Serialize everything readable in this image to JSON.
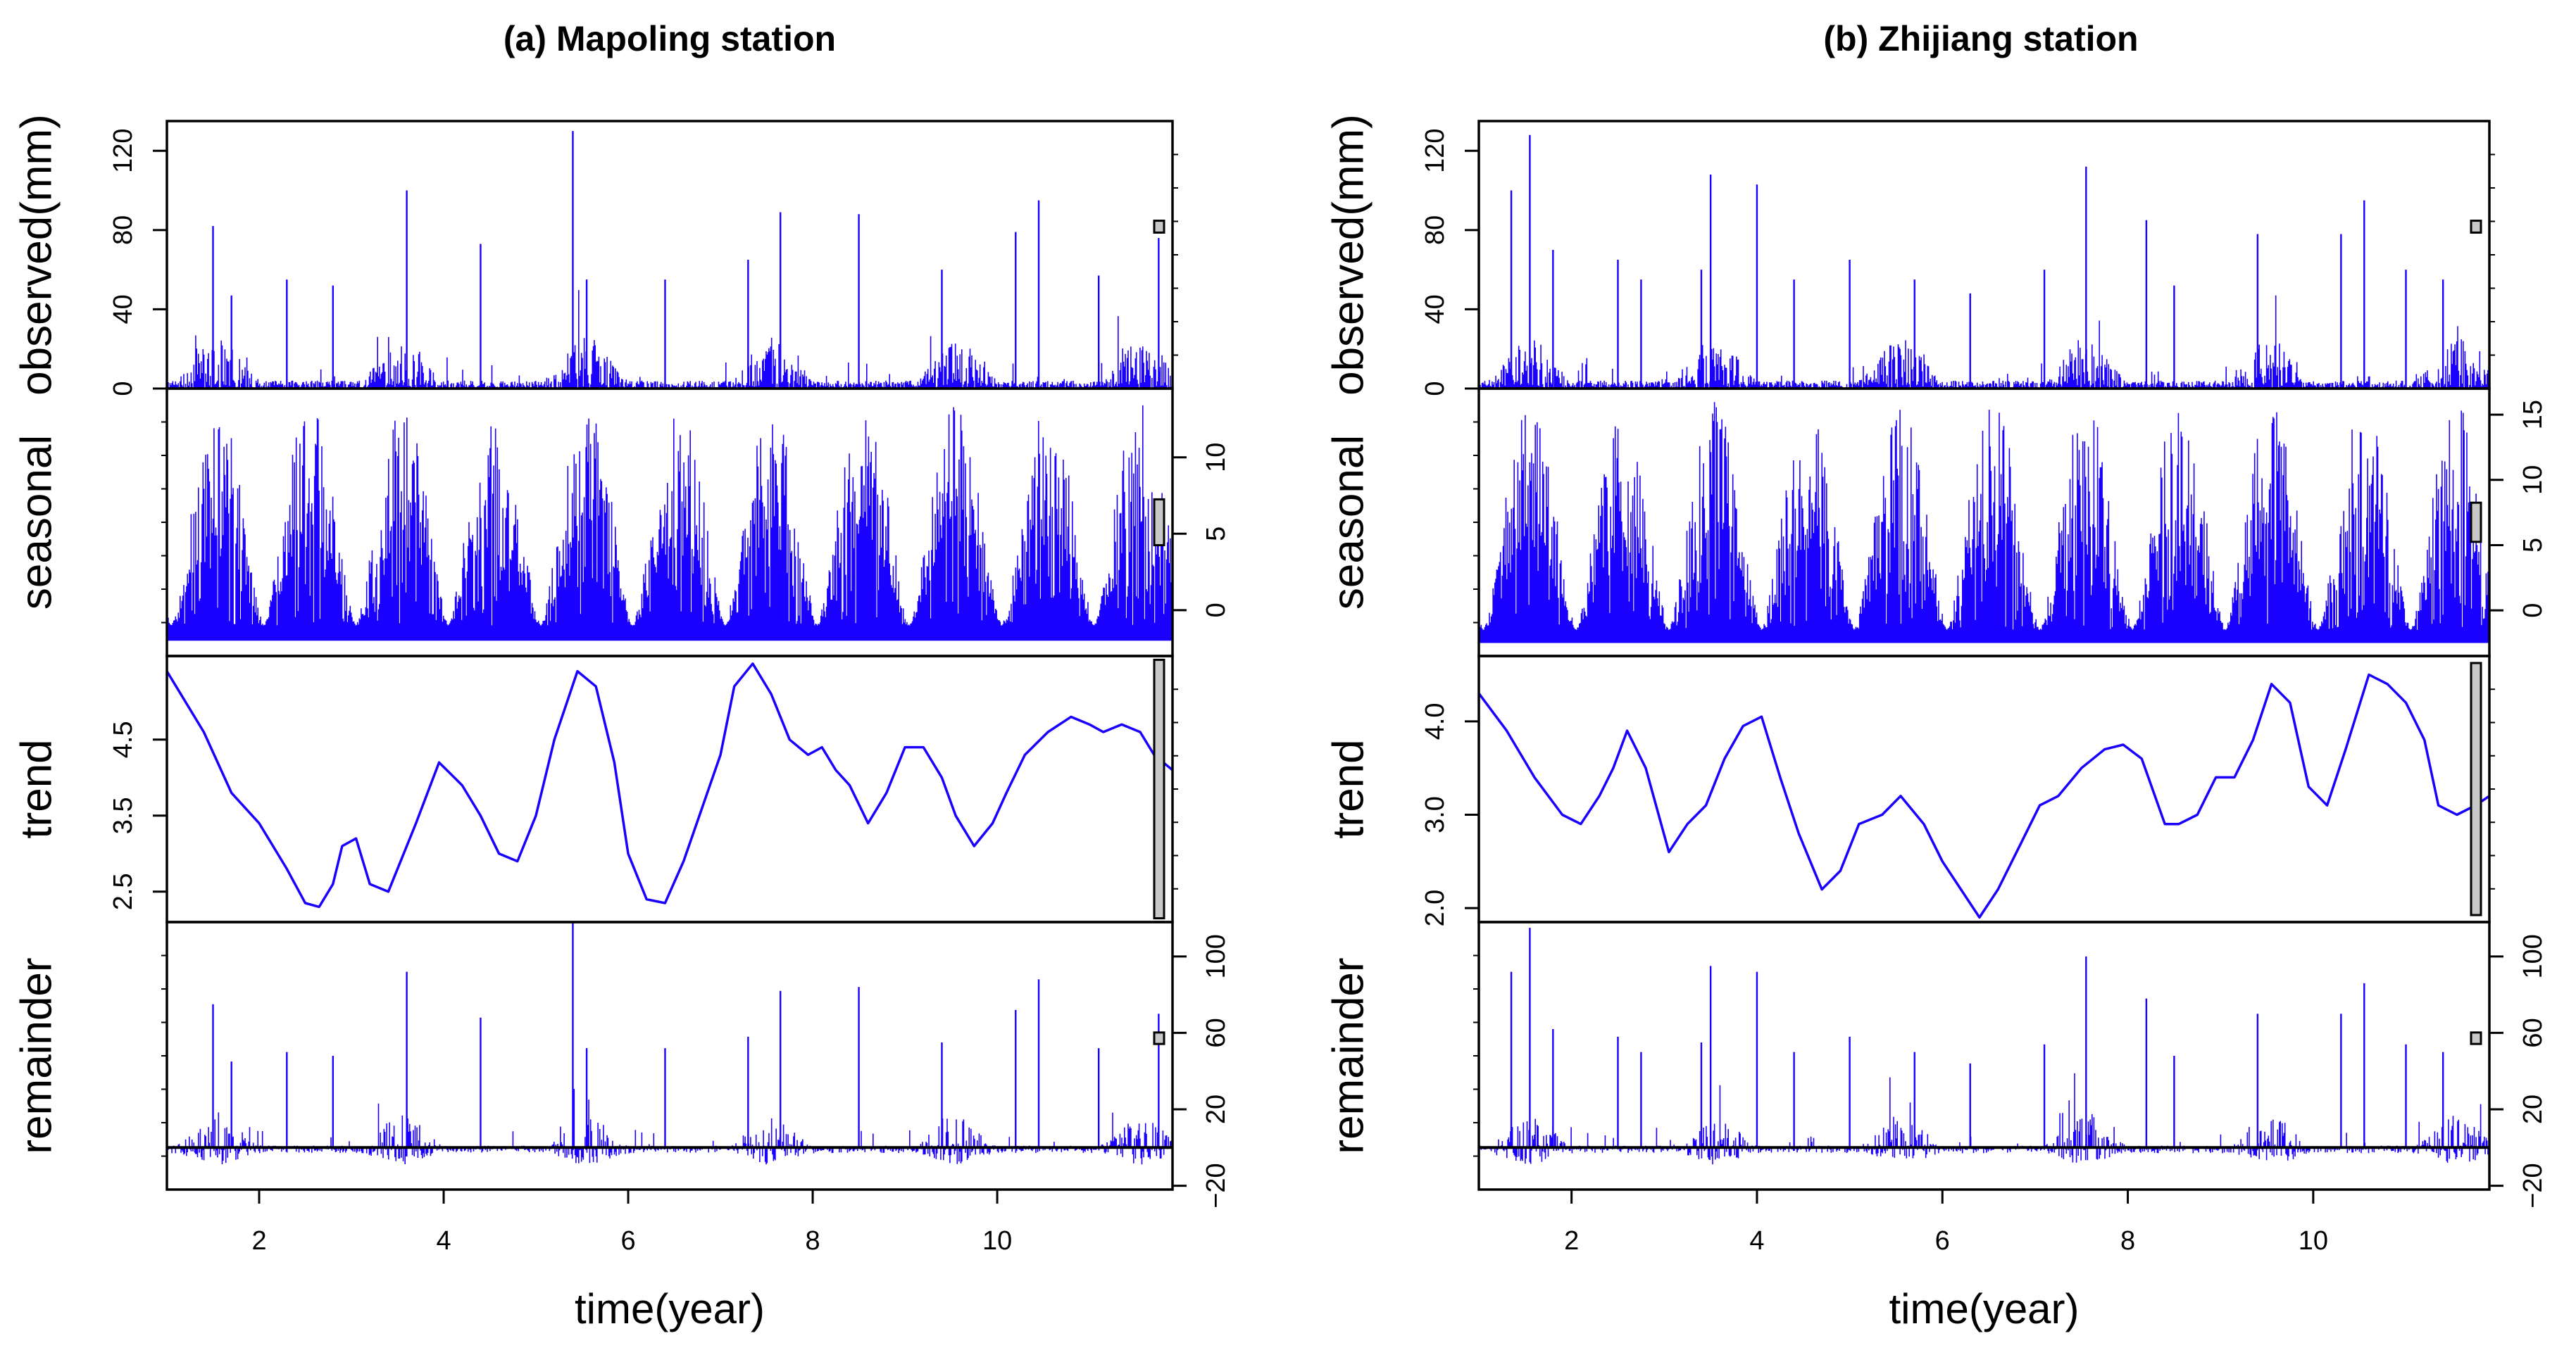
{
  "chart_data": [
    {
      "type": "line",
      "title": "(a) Mapoling station",
      "xlabel": "time(year)",
      "xlim": [
        1,
        11.9
      ],
      "xticks": [
        2,
        4,
        6,
        8,
        10
      ],
      "xtick_labels": [
        "2",
        "4",
        "6",
        "8",
        "10"
      ],
      "line_color": "#1a00ff",
      "panels": [
        {
          "name": "observed",
          "label": "observed(mm)",
          "style": "spikes",
          "axis_side": "left",
          "ylim": [
            0,
            135
          ],
          "yticks": [
            0,
            40,
            80,
            120
          ],
          "ytick_labels": [
            "0",
            "40",
            "80",
            "120"
          ],
          "bar_range": 6,
          "peaks": [
            [
              1.5,
              82
            ],
            [
              1.7,
              47
            ],
            [
              2.3,
              55
            ],
            [
              2.8,
              52
            ],
            [
              3.6,
              100
            ],
            [
              4.4,
              73
            ],
            [
              5.4,
              130
            ],
            [
              5.55,
              55
            ],
            [
              6.4,
              55
            ],
            [
              7.3,
              65
            ],
            [
              7.65,
              89
            ],
            [
              8.5,
              88
            ],
            [
              9.4,
              60
            ],
            [
              10.2,
              79
            ],
            [
              10.45,
              95
            ],
            [
              11.1,
              57
            ],
            [
              11.75,
              76
            ]
          ]
        },
        {
          "name": "seasonal",
          "label": "seasonal",
          "style": "seasonal",
          "axis_side": "right",
          "ylim": [
            -3,
            14.5
          ],
          "yticks": [
            0,
            5,
            10
          ],
          "ytick_labels": [
            "0",
            "5",
            "10"
          ],
          "bar_range": 3,
          "baseline": -2
        },
        {
          "name": "trend",
          "label": "trend",
          "style": "line",
          "axis_side": "left",
          "ylim": [
            2.1,
            5.6
          ],
          "yticks": [
            2.5,
            3.5,
            4.5
          ],
          "ytick_labels": [
            "2.5",
            "3.5",
            "4.5"
          ],
          "bar_range": 3.4,
          "x": [
            1.0,
            1.4,
            1.7,
            2.0,
            2.3,
            2.5,
            2.65,
            2.8,
            2.9,
            3.05,
            3.2,
            3.4,
            3.7,
            3.95,
            4.2,
            4.4,
            4.6,
            4.8,
            5.0,
            5.2,
            5.45,
            5.65,
            5.85,
            6.0,
            6.2,
            6.4,
            6.6,
            6.8,
            7.0,
            7.15,
            7.35,
            7.55,
            7.75,
            7.95,
            8.1,
            8.25,
            8.4,
            8.6,
            8.8,
            9.0,
            9.2,
            9.4,
            9.55,
            9.75,
            9.95,
            10.1,
            10.3,
            10.55,
            10.8,
            11.0,
            11.15,
            11.35,
            11.55,
            11.7,
            11.9
          ],
          "y": [
            5.4,
            4.6,
            3.8,
            3.4,
            2.8,
            2.35,
            2.3,
            2.6,
            3.1,
            3.2,
            2.6,
            2.5,
            3.4,
            4.2,
            3.9,
            3.5,
            3.0,
            2.9,
            3.5,
            4.5,
            5.4,
            5.2,
            4.2,
            3.0,
            2.4,
            2.35,
            2.9,
            3.6,
            4.3,
            5.2,
            5.5,
            5.1,
            4.5,
            4.3,
            4.4,
            4.1,
            3.9,
            3.4,
            3.8,
            4.4,
            4.4,
            4.0,
            3.5,
            3.1,
            3.4,
            3.8,
            4.3,
            4.6,
            4.8,
            4.7,
            4.6,
            4.7,
            4.6,
            4.3,
            4.1
          ]
        },
        {
          "name": "remainder",
          "label": "remainder",
          "style": "remainder",
          "axis_side": "right",
          "ylim": [
            -22,
            118
          ],
          "yticks": [
            -20,
            20,
            60,
            100
          ],
          "ytick_labels": [
            "−20",
            "20",
            "60",
            "100"
          ],
          "bar_range": 6,
          "peaks": [
            [
              1.5,
              75
            ],
            [
              1.7,
              45
            ],
            [
              2.3,
              50
            ],
            [
              2.8,
              48
            ],
            [
              3.6,
              92
            ],
            [
              4.4,
              68
            ],
            [
              5.4,
              118
            ],
            [
              5.55,
              52
            ],
            [
              6.4,
              52
            ],
            [
              7.3,
              58
            ],
            [
              7.65,
              82
            ],
            [
              8.5,
              84
            ],
            [
              9.4,
              55
            ],
            [
              10.2,
              72
            ],
            [
              10.45,
              88
            ],
            [
              11.1,
              52
            ],
            [
              11.75,
              70
            ]
          ]
        }
      ]
    },
    {
      "type": "line",
      "title": "(b) Zhijiang station",
      "xlabel": "time(year)",
      "xlim": [
        1,
        11.9
      ],
      "xticks": [
        2,
        4,
        6,
        8,
        10
      ],
      "xtick_labels": [
        "2",
        "4",
        "6",
        "8",
        "10"
      ],
      "line_color": "#1a00ff",
      "panels": [
        {
          "name": "observed",
          "label": "observed(mm)",
          "style": "spikes",
          "axis_side": "left",
          "ylim": [
            0,
            135
          ],
          "yticks": [
            0,
            40,
            80,
            120
          ],
          "ytick_labels": [
            "0",
            "40",
            "80",
            "120"
          ],
          "bar_range": 6,
          "peaks": [
            [
              1.35,
              100
            ],
            [
              1.55,
              128
            ],
            [
              1.8,
              70
            ],
            [
              2.5,
              65
            ],
            [
              2.75,
              55
            ],
            [
              3.4,
              60
            ],
            [
              3.5,
              108
            ],
            [
              4.0,
              103
            ],
            [
              4.4,
              55
            ],
            [
              5.0,
              65
            ],
            [
              5.7,
              55
            ],
            [
              6.3,
              48
            ],
            [
              7.1,
              60
            ],
            [
              7.55,
              112
            ],
            [
              8.2,
              85
            ],
            [
              8.5,
              52
            ],
            [
              9.4,
              78
            ],
            [
              10.3,
              78
            ],
            [
              10.55,
              95
            ],
            [
              11.0,
              60
            ],
            [
              11.4,
              55
            ]
          ]
        },
        {
          "name": "seasonal",
          "label": "seasonal",
          "style": "seasonal",
          "axis_side": "right",
          "ylim": [
            -3.5,
            17
          ],
          "yticks": [
            0,
            5,
            10,
            15
          ],
          "ytick_labels": [
            "0",
            "5",
            "10",
            "15"
          ],
          "bar_range": 3,
          "baseline": -2.5
        },
        {
          "name": "trend",
          "label": "trend",
          "style": "line",
          "axis_side": "left",
          "ylim": [
            1.85,
            4.7
          ],
          "yticks": [
            2.0,
            3.0,
            4.0
          ],
          "ytick_labels": [
            "2.0",
            "3.0",
            "4.0"
          ],
          "bar_range": 2.7,
          "x": [
            1.0,
            1.3,
            1.6,
            1.9,
            2.1,
            2.3,
            2.45,
            2.6,
            2.8,
            3.05,
            3.25,
            3.45,
            3.65,
            3.85,
            4.05,
            4.25,
            4.45,
            4.7,
            4.9,
            5.1,
            5.35,
            5.55,
            5.8,
            6.0,
            6.2,
            6.4,
            6.6,
            6.85,
            7.05,
            7.25,
            7.5,
            7.75,
            7.95,
            8.15,
            8.4,
            8.55,
            8.75,
            8.95,
            9.15,
            9.35,
            9.55,
            9.75,
            9.95,
            10.15,
            10.35,
            10.6,
            10.8,
            11.0,
            11.2,
            11.35,
            11.55,
            11.75,
            11.9
          ],
          "y": [
            4.3,
            3.9,
            3.4,
            3.0,
            2.9,
            3.2,
            3.5,
            3.9,
            3.5,
            2.6,
            2.9,
            3.1,
            3.6,
            3.95,
            4.05,
            3.4,
            2.8,
            2.2,
            2.4,
            2.9,
            3.0,
            3.2,
            2.9,
            2.5,
            2.2,
            1.9,
            2.2,
            2.7,
            3.1,
            3.2,
            3.5,
            3.7,
            3.75,
            3.6,
            2.9,
            2.9,
            3.0,
            3.4,
            3.4,
            3.8,
            4.4,
            4.2,
            3.3,
            3.1,
            3.7,
            4.5,
            4.4,
            4.2,
            3.8,
            3.1,
            3.0,
            3.1,
            3.2
          ]
        },
        {
          "name": "remainder",
          "label": "remainder",
          "style": "remainder",
          "axis_side": "right",
          "ylim": [
            -22,
            118
          ],
          "yticks": [
            -20,
            20,
            60,
            100
          ],
          "ytick_labels": [
            "−20",
            "20",
            "60",
            "100"
          ],
          "bar_range": 6,
          "peaks": [
            [
              1.35,
              92
            ],
            [
              1.55,
              115
            ],
            [
              1.8,
              62
            ],
            [
              2.5,
              58
            ],
            [
              2.75,
              50
            ],
            [
              3.4,
              55
            ],
            [
              3.5,
              95
            ],
            [
              4.0,
              92
            ],
            [
              4.4,
              50
            ],
            [
              5.0,
              58
            ],
            [
              5.7,
              50
            ],
            [
              6.3,
              44
            ],
            [
              7.1,
              54
            ],
            [
              7.55,
              100
            ],
            [
              8.2,
              78
            ],
            [
              8.5,
              48
            ],
            [
              9.4,
              70
            ],
            [
              10.3,
              70
            ],
            [
              10.55,
              86
            ],
            [
              11.0,
              54
            ],
            [
              11.4,
              50
            ]
          ]
        }
      ]
    }
  ]
}
